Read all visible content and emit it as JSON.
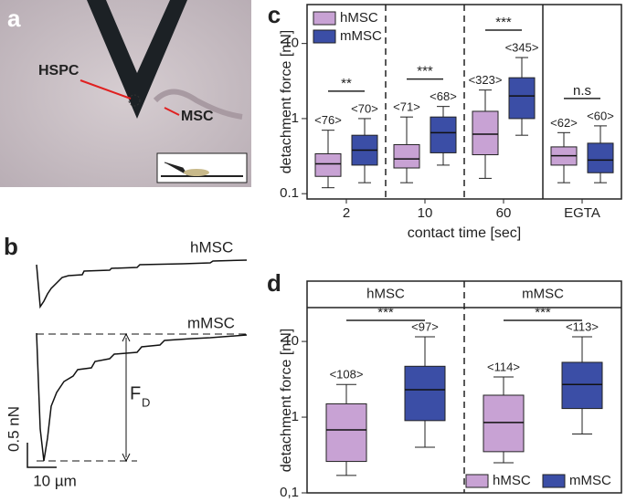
{
  "panel_a": {
    "label": "a",
    "annotations": [
      "HSPC",
      "MSC"
    ]
  },
  "panel_b": {
    "label": "b",
    "traces": [
      "hMSC",
      "mMSC"
    ],
    "force_symbol": "F",
    "force_subscript": "D",
    "scale_y": "0.5 nN",
    "scale_x": "10 µm"
  },
  "chart_data": [
    {
      "type": "box",
      "panel_label": "c",
      "xlabel": "contact time [sec]",
      "ylabel": "detachment force [nN]",
      "categories": [
        "2",
        "10",
        "60",
        "EGTA"
      ],
      "log_scale": true,
      "ylim": [
        0.085,
        33
      ],
      "yticks": [
        0.1,
        1,
        10
      ],
      "legend": "top-left",
      "significance": [
        "**",
        "***",
        "***",
        "n.s"
      ],
      "series": [
        {
          "name": "hMSC",
          "color": "#c8a2d4",
          "min": [
            0.12,
            0.14,
            0.16,
            0.14
          ],
          "q1": [
            0.17,
            0.22,
            0.33,
            0.24
          ],
          "median": [
            0.25,
            0.29,
            0.62,
            0.32
          ],
          "q3": [
            0.34,
            0.45,
            1.25,
            0.42
          ],
          "max": [
            0.7,
            1.05,
            2.4,
            0.65
          ],
          "n_labels": [
            "<76>",
            "<71>",
            "<323>",
            "<62>"
          ]
        },
        {
          "name": "mMSC",
          "color": "#3b4ea6",
          "min": [
            0.14,
            0.24,
            0.6,
            0.14
          ],
          "q1": [
            0.24,
            0.35,
            1.0,
            0.19
          ],
          "median": [
            0.38,
            0.65,
            2.0,
            0.28
          ],
          "q3": [
            0.6,
            1.05,
            3.5,
            0.47
          ],
          "max": [
            1.0,
            1.45,
            6.5,
            0.8
          ],
          "n_labels": [
            "<70>",
            "<68>",
            "<345>",
            "<60>"
          ]
        }
      ]
    },
    {
      "type": "box",
      "panel_label": "d",
      "ylabel": "detachment force [nN]",
      "categories": [
        "hMSC",
        "mMSC"
      ],
      "log_scale": true,
      "ylim": [
        0.1,
        28
      ],
      "yticks": [
        {
          "value": 0.1,
          "label": "0,1"
        },
        1,
        10
      ],
      "legend": "bottom-right",
      "significance": [
        "***",
        "***"
      ],
      "series": [
        {
          "name": "hMSC",
          "color": "#c8a2d4",
          "min": [
            0.17,
            0.25
          ],
          "q1": [
            0.26,
            0.35
          ],
          "median": [
            0.68,
            0.85
          ],
          "q3": [
            1.5,
            1.95
          ],
          "max": [
            2.7,
            3.4
          ],
          "n_labels": [
            "<108>",
            "<114>"
          ]
        },
        {
          "name": "mMSC",
          "color": "#3b4ea6",
          "min": [
            0.4,
            0.6
          ],
          "q1": [
            0.9,
            1.3
          ],
          "median": [
            2.3,
            2.7
          ],
          "q3": [
            4.7,
            5.3
          ],
          "max": [
            11.5,
            11.5
          ],
          "n_labels": [
            "<97>",
            "<113>"
          ]
        }
      ]
    }
  ]
}
